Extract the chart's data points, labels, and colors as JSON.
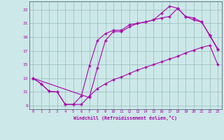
{
  "xlabel": "Windchill (Refroidissement éolien,°C)",
  "bg_color": "#cce8e8",
  "grid_color": "#99bbbb",
  "line_color": "#aa00aa",
  "xlim": [
    -0.5,
    23.5
  ],
  "ylim": [
    8.5,
    24.2
  ],
  "xticks": [
    0,
    1,
    2,
    3,
    4,
    5,
    6,
    7,
    8,
    9,
    10,
    11,
    12,
    13,
    14,
    15,
    16,
    17,
    18,
    19,
    20,
    21,
    22,
    23
  ],
  "yticks": [
    9,
    11,
    13,
    15,
    17,
    19,
    21,
    23
  ],
  "line1_x": [
    0,
    1,
    2,
    3,
    4,
    5,
    6,
    7,
    8,
    9,
    10,
    11,
    12,
    13,
    14,
    15,
    16,
    17,
    18,
    19,
    20,
    21,
    22,
    23
  ],
  "line1_y": [
    13.0,
    12.2,
    11.1,
    11.0,
    9.2,
    9.2,
    9.2,
    10.4,
    11.5,
    12.2,
    12.8,
    13.2,
    13.7,
    14.2,
    14.6,
    15.0,
    15.4,
    15.8,
    16.2,
    16.7,
    17.1,
    17.5,
    17.8,
    15.0
  ],
  "line2_x": [
    0,
    1,
    2,
    3,
    4,
    5,
    6,
    7,
    8,
    9,
    10,
    11,
    12,
    13,
    14,
    15,
    16,
    17,
    18,
    19,
    20,
    21,
    22,
    23
  ],
  "line2_y": [
    13.0,
    12.2,
    11.1,
    11.0,
    9.2,
    9.2,
    10.4,
    14.8,
    18.5,
    19.5,
    20.0,
    20.0,
    20.8,
    21.0,
    21.2,
    21.5,
    21.8,
    22.0,
    23.2,
    22.0,
    21.5,
    21.2,
    19.3,
    17.3
  ],
  "line3_x": [
    0,
    7,
    8,
    9,
    10,
    11,
    12,
    13,
    14,
    15,
    16,
    17,
    18,
    19,
    20,
    21,
    22,
    23
  ],
  "line3_y": [
    13.0,
    10.2,
    14.5,
    18.5,
    19.8,
    19.8,
    20.5,
    21.0,
    21.2,
    21.5,
    22.5,
    23.5,
    23.2,
    22.0,
    21.8,
    21.2,
    19.2,
    17.2
  ]
}
